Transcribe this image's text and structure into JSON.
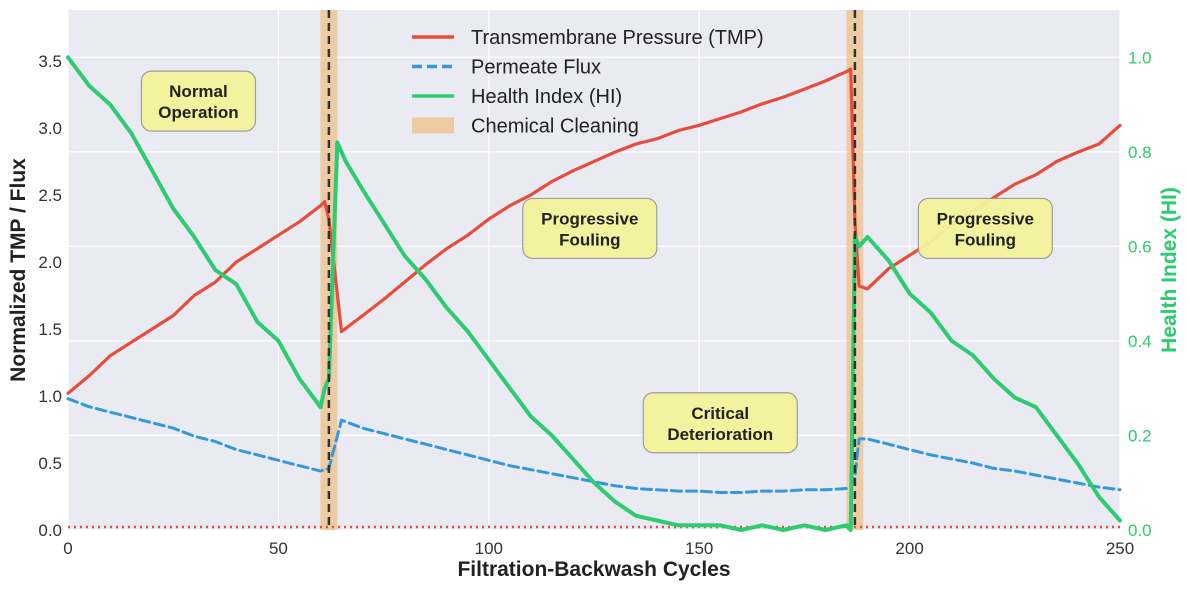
{
  "chart_data": {
    "type": "line",
    "title": "",
    "xlabel": "Filtration-Backwash Cycles",
    "ylabel_left": "Normalized TMP / Flux",
    "ylabel_right": "Health Index (HI)",
    "xlim": [
      0,
      250
    ],
    "ylim_left": [
      0,
      3.88
    ],
    "ylim_right": [
      0,
      1.1
    ],
    "x_ticks": [
      0,
      50,
      100,
      150,
      200,
      250
    ],
    "y_ticks_left": [
      0.0,
      0.5,
      1.0,
      1.5,
      2.0,
      2.5,
      3.0,
      3.5
    ],
    "y_ticks_right": [
      0.0,
      0.2,
      0.4,
      0.6,
      0.8,
      1.0
    ],
    "y_tick_labels_left": [
      "0.0",
      "0.5",
      "1.0",
      "1.5",
      "2.0",
      "2.5",
      "3.0",
      "3.5"
    ],
    "y_tick_labels_right": [
      "0.0",
      "0.2",
      "0.4",
      "0.6",
      "0.8",
      "1.0"
    ],
    "failure_threshold_hi": 0.0,
    "cleaning_events": [
      62,
      187
    ],
    "cleaning_span": [
      [
        60,
        64
      ],
      [
        185,
        189
      ]
    ],
    "series": [
      {
        "name": "Transmembrane Pressure (TMP)",
        "axis": "left",
        "color": "#e74c3c",
        "style": "solid",
        "x": [
          0,
          5,
          10,
          15,
          20,
          25,
          30,
          35,
          40,
          45,
          50,
          55,
          60,
          61,
          62,
          65,
          70,
          75,
          80,
          85,
          90,
          95,
          100,
          105,
          110,
          115,
          120,
          125,
          130,
          135,
          140,
          145,
          150,
          155,
          160,
          165,
          170,
          175,
          180,
          185,
          186,
          187,
          188,
          190,
          195,
          200,
          205,
          210,
          215,
          220,
          225,
          230,
          235,
          240,
          245,
          250
        ],
        "values": [
          1.02,
          1.15,
          1.3,
          1.4,
          1.5,
          1.6,
          1.75,
          1.85,
          2.0,
          2.1,
          2.2,
          2.3,
          2.42,
          2.45,
          2.32,
          1.48,
          1.6,
          1.72,
          1.85,
          1.98,
          2.1,
          2.2,
          2.32,
          2.42,
          2.5,
          2.6,
          2.68,
          2.75,
          2.82,
          2.88,
          2.92,
          2.98,
          3.02,
          3.07,
          3.12,
          3.18,
          3.23,
          3.29,
          3.35,
          3.42,
          3.44,
          2.3,
          1.82,
          1.8,
          1.95,
          2.05,
          2.15,
          2.28,
          2.38,
          2.48,
          2.58,
          2.65,
          2.75,
          2.82,
          2.88,
          3.02
        ]
      },
      {
        "name": "Permeate Flux",
        "axis": "left",
        "color": "#3498db",
        "style": "dashed",
        "x": [
          0,
          5,
          10,
          15,
          20,
          25,
          30,
          35,
          40,
          45,
          50,
          55,
          60,
          61,
          62,
          65,
          70,
          75,
          80,
          85,
          90,
          95,
          100,
          105,
          110,
          115,
          120,
          125,
          130,
          135,
          140,
          145,
          150,
          155,
          160,
          165,
          170,
          175,
          180,
          185,
          186,
          187,
          188,
          190,
          195,
          200,
          205,
          210,
          215,
          220,
          225,
          230,
          235,
          240,
          245,
          250
        ],
        "values": [
          0.98,
          0.92,
          0.88,
          0.84,
          0.8,
          0.76,
          0.7,
          0.66,
          0.6,
          0.56,
          0.52,
          0.48,
          0.44,
          0.45,
          0.46,
          0.82,
          0.76,
          0.72,
          0.68,
          0.64,
          0.6,
          0.56,
          0.52,
          0.48,
          0.45,
          0.42,
          0.39,
          0.36,
          0.33,
          0.31,
          0.3,
          0.29,
          0.29,
          0.28,
          0.28,
          0.29,
          0.29,
          0.3,
          0.3,
          0.31,
          0.31,
          0.4,
          0.68,
          0.68,
          0.64,
          0.6,
          0.56,
          0.53,
          0.5,
          0.46,
          0.44,
          0.41,
          0.38,
          0.35,
          0.32,
          0.3
        ]
      },
      {
        "name": "Health Index (HI)",
        "axis": "right",
        "color": "#2ecc71",
        "style": "solid",
        "x": [
          0,
          5,
          10,
          15,
          20,
          25,
          30,
          35,
          40,
          45,
          50,
          55,
          60,
          61,
          62,
          64,
          66,
          70,
          75,
          80,
          85,
          90,
          95,
          100,
          105,
          110,
          115,
          120,
          125,
          130,
          135,
          140,
          145,
          150,
          155,
          160,
          165,
          170,
          175,
          180,
          185,
          186,
          187,
          188,
          190,
          195,
          200,
          205,
          210,
          215,
          220,
          225,
          230,
          235,
          240,
          245,
          250
        ],
        "values": [
          1.0,
          0.94,
          0.9,
          0.84,
          0.76,
          0.68,
          0.62,
          0.55,
          0.52,
          0.44,
          0.4,
          0.32,
          0.26,
          0.3,
          0.32,
          0.82,
          0.78,
          0.72,
          0.65,
          0.58,
          0.53,
          0.47,
          0.42,
          0.36,
          0.3,
          0.24,
          0.2,
          0.15,
          0.1,
          0.06,
          0.03,
          0.02,
          0.01,
          0.01,
          0.01,
          0.0,
          0.01,
          0.0,
          0.01,
          0.0,
          0.01,
          0.0,
          0.62,
          0.6,
          0.62,
          0.57,
          0.5,
          0.46,
          0.4,
          0.37,
          0.32,
          0.28,
          0.26,
          0.2,
          0.14,
          0.07,
          0.02
        ]
      }
    ],
    "legend": {
      "position": "top-center",
      "entries": [
        {
          "label": "Transmembrane Pressure (TMP)",
          "kind": "line-solid",
          "color": "#e74c3c"
        },
        {
          "label": "Permeate Flux",
          "kind": "line-dashed",
          "color": "#3498db"
        },
        {
          "label": "Health Index (HI)",
          "kind": "line-solid",
          "color": "#2ecc71"
        },
        {
          "label": "Chemical Cleaning",
          "kind": "patch",
          "color": "#f0c38f"
        }
      ]
    },
    "annotations": [
      {
        "lines": [
          "Normal",
          "Operation"
        ],
        "x": 31,
        "y": 3.2
      },
      {
        "lines": [
          "Progressive",
          "Fouling"
        ],
        "x": 124,
        "y": 2.25
      },
      {
        "lines": [
          "Critical",
          "Deterioration"
        ],
        "x": 155,
        "y": 0.8
      },
      {
        "lines": [
          "Progressive",
          "Fouling"
        ],
        "x": 218,
        "y": 2.25
      }
    ]
  }
}
